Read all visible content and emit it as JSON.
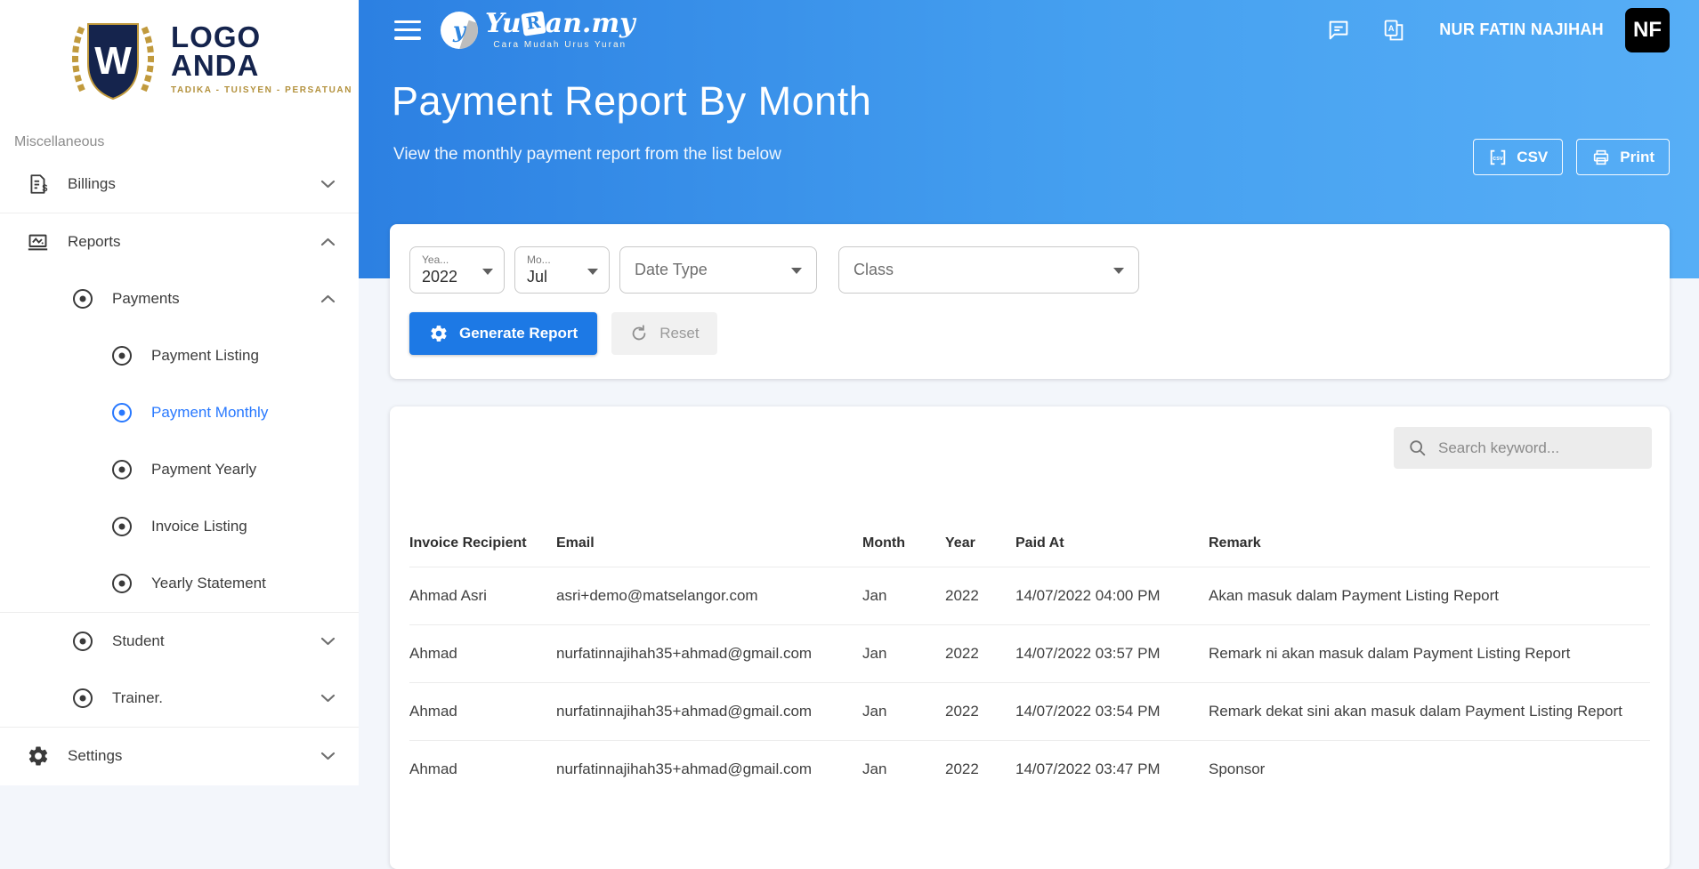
{
  "brand": {
    "emblem_letter": "W",
    "name_line1": "LOGO",
    "name_line2": "ANDA",
    "tagline": "TADIKA - TUISYEN - PERSATUAN"
  },
  "topbar": {
    "logo_mark_letter": "y",
    "logo_part1": "Yu",
    "logo_part2": "R",
    "logo_part3": "an.my",
    "logo_tagline": "Cara Mudah Urus Yuran",
    "user_name": "NUR FATIN NAJIHAH",
    "avatar_initials": "NF"
  },
  "sidebar": {
    "section_label": "Miscellaneous",
    "items": [
      {
        "label": "Billings",
        "icon": "billing-icon",
        "level": 0,
        "chevron": "down"
      },
      {
        "label": "Reports",
        "icon": "reports-icon",
        "level": 0,
        "chevron": "up",
        "divider_before": true
      },
      {
        "label": "Payments",
        "icon": "radio-icon",
        "level": 1,
        "chevron": "up"
      },
      {
        "label": "Payment Listing",
        "icon": "radio-icon",
        "level": 2
      },
      {
        "label": "Payment Monthly",
        "icon": "radio-icon",
        "level": 2,
        "active": true
      },
      {
        "label": "Payment Yearly",
        "icon": "radio-icon",
        "level": 2
      },
      {
        "label": "Invoice Listing",
        "icon": "radio-icon",
        "level": 2
      },
      {
        "label": "Yearly Statement",
        "icon": "radio-icon",
        "level": 2
      },
      {
        "label": "Student",
        "icon": "radio-icon",
        "level": 1,
        "chevron": "down",
        "divider_before": true
      },
      {
        "label": "Trainer.",
        "icon": "radio-icon",
        "level": 1,
        "chevron": "down"
      },
      {
        "label": "Settings",
        "icon": "gear-icon",
        "level": 0,
        "chevron": "down",
        "divider_before": true
      }
    ]
  },
  "hero": {
    "title": "Payment Report By Month",
    "subtitle": "View the monthly payment report from the list below",
    "csv_label": "CSV",
    "print_label": "Print"
  },
  "filters": {
    "year_label": "Yea...",
    "year_value": "2022",
    "month_label": "Mo...",
    "month_value": "Jul",
    "date_type_placeholder": "Date Type",
    "class_placeholder": "Class",
    "generate_label": "Generate Report",
    "reset_label": "Reset"
  },
  "report": {
    "search_placeholder": "Search keyword...",
    "columns": [
      "Invoice Recipient",
      "Email",
      "Month",
      "Year",
      "Paid At",
      "Remark"
    ],
    "rows": [
      [
        "Ahmad Asri",
        "asri+demo@matselangor.com",
        "Jan",
        "2022",
        "14/07/2022 04:00 PM",
        "Akan masuk dalam Payment Listing Report"
      ],
      [
        "Ahmad",
        "nurfatinnajihah35+ahmad@gmail.com",
        "Jan",
        "2022",
        "14/07/2022 03:57 PM",
        "Remark ni akan masuk dalam Payment Listing Report"
      ],
      [
        "Ahmad",
        "nurfatinnajihah35+ahmad@gmail.com",
        "Jan",
        "2022",
        "14/07/2022 03:54 PM",
        "Remark dekat sini akan masuk dalam Payment Listing Report"
      ],
      [
        "Ahmad",
        "nurfatinnajihah35+ahmad@gmail.com",
        "Jan",
        "2022",
        "14/07/2022 03:47 PM",
        "Sponsor"
      ]
    ]
  },
  "colors": {
    "header_gradient_start": "#2c80e2",
    "header_gradient_end": "#57aef6",
    "accent_button_blue": "#1d79e5",
    "active_link_blue": "#2979ff",
    "avatar_bg": "#000000",
    "logo_navy": "#15244d",
    "logo_gold": "#b3913c"
  }
}
